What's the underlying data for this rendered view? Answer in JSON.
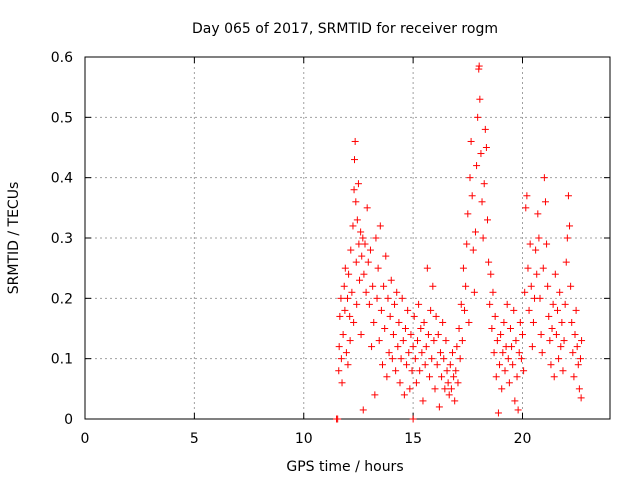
{
  "chart_data": {
    "type": "scatter",
    "title": "Day 065 of 2017, SRMTID for receiver rogm",
    "xlabel": "GPS time / hours",
    "ylabel": "SRMTID / TECUs",
    "xlim": [
      0,
      24
    ],
    "ylim": [
      0,
      0.6
    ],
    "xticks": [
      0,
      5,
      10,
      15,
      20
    ],
    "yticks": [
      0,
      0.1,
      0.2,
      0.3,
      0.4,
      0.5,
      0.6
    ],
    "grid": true,
    "marker": "+",
    "color": "#ff0000",
    "series": [
      {
        "points": [
          [
            11.5,
            0.0
          ],
          [
            11.55,
            0.0
          ],
          [
            15.0,
            0.0
          ],
          [
            11.6,
            0.08
          ],
          [
            11.62,
            0.12
          ],
          [
            11.65,
            0.17
          ],
          [
            11.7,
            0.2
          ],
          [
            11.72,
            0.1
          ],
          [
            11.75,
            0.06
          ],
          [
            11.8,
            0.14
          ],
          [
            11.85,
            0.22
          ],
          [
            11.88,
            0.18
          ],
          [
            11.9,
            0.25
          ],
          [
            11.95,
            0.11
          ],
          [
            12.0,
            0.2
          ],
          [
            12.02,
            0.09
          ],
          [
            12.05,
            0.24
          ],
          [
            12.1,
            0.17
          ],
          [
            12.12,
            0.13
          ],
          [
            12.15,
            0.28
          ],
          [
            12.2,
            0.21
          ],
          [
            12.25,
            0.32
          ],
          [
            12.28,
            0.16
          ],
          [
            12.3,
            0.38
          ],
          [
            12.32,
            0.43
          ],
          [
            12.35,
            0.46
          ],
          [
            12.38,
            0.36
          ],
          [
            12.4,
            0.26
          ],
          [
            12.42,
            0.19
          ],
          [
            12.45,
            0.33
          ],
          [
            12.5,
            0.39
          ],
          [
            12.52,
            0.29
          ],
          [
            12.55,
            0.23
          ],
          [
            12.6,
            0.31
          ],
          [
            12.62,
            0.14
          ],
          [
            12.65,
            0.27
          ],
          [
            12.7,
            0.3
          ],
          [
            12.72,
            0.015
          ],
          [
            12.75,
            0.24
          ],
          [
            12.8,
            0.29
          ],
          [
            12.85,
            0.21
          ],
          [
            12.9,
            0.35
          ],
          [
            12.95,
            0.26
          ],
          [
            13.0,
            0.19
          ],
          [
            13.05,
            0.28
          ],
          [
            13.1,
            0.12
          ],
          [
            13.15,
            0.22
          ],
          [
            13.2,
            0.16
          ],
          [
            13.25,
            0.04
          ],
          [
            13.3,
            0.3
          ],
          [
            13.35,
            0.2
          ],
          [
            13.4,
            0.25
          ],
          [
            13.45,
            0.13
          ],
          [
            13.5,
            0.32
          ],
          [
            13.55,
            0.18
          ],
          [
            13.6,
            0.09
          ],
          [
            13.65,
            0.22
          ],
          [
            13.7,
            0.15
          ],
          [
            13.75,
            0.27
          ],
          [
            13.8,
            0.07
          ],
          [
            13.85,
            0.2
          ],
          [
            13.9,
            0.11
          ],
          [
            13.95,
            0.17
          ],
          [
            14.0,
            0.23
          ],
          [
            14.05,
            0.1
          ],
          [
            14.1,
            0.14
          ],
          [
            14.15,
            0.19
          ],
          [
            14.2,
            0.08
          ],
          [
            14.25,
            0.21
          ],
          [
            14.3,
            0.12
          ],
          [
            14.35,
            0.16
          ],
          [
            14.4,
            0.06
          ],
          [
            14.45,
            0.1
          ],
          [
            14.5,
            0.2
          ],
          [
            14.55,
            0.13
          ],
          [
            14.6,
            0.04
          ],
          [
            14.65,
            0.15
          ],
          [
            14.7,
            0.09
          ],
          [
            14.75,
            0.18
          ],
          [
            14.8,
            0.11
          ],
          [
            14.85,
            0.05
          ],
          [
            14.9,
            0.14
          ],
          [
            14.95,
            0.08
          ],
          [
            15.0,
            0.12
          ],
          [
            15.05,
            0.17
          ],
          [
            15.1,
            0.1
          ],
          [
            15.15,
            0.06
          ],
          [
            15.2,
            0.13
          ],
          [
            15.25,
            0.19
          ],
          [
            15.3,
            0.08
          ],
          [
            15.35,
            0.15
          ],
          [
            15.4,
            0.11
          ],
          [
            15.45,
            0.03
          ],
          [
            15.5,
            0.16
          ],
          [
            15.55,
            0.09
          ],
          [
            15.6,
            0.12
          ],
          [
            15.65,
            0.25
          ],
          [
            15.7,
            0.14
          ],
          [
            15.75,
            0.07
          ],
          [
            15.8,
            0.18
          ],
          [
            15.85,
            0.1
          ],
          [
            15.9,
            0.22
          ],
          [
            15.95,
            0.13
          ],
          [
            16.0,
            0.05
          ],
          [
            16.05,
            0.17
          ],
          [
            16.1,
            0.09
          ],
          [
            16.15,
            0.14
          ],
          [
            16.2,
            0.02
          ],
          [
            16.25,
            0.11
          ],
          [
            16.3,
            0.07
          ],
          [
            16.35,
            0.16
          ],
          [
            16.4,
            0.1
          ],
          [
            16.45,
            0.05
          ],
          [
            16.5,
            0.13
          ],
          [
            16.55,
            0.08
          ],
          [
            16.6,
            0.06
          ],
          [
            16.65,
            0.04
          ],
          [
            16.7,
            0.09
          ],
          [
            16.75,
            0.05
          ],
          [
            16.8,
            0.11
          ],
          [
            16.85,
            0.07
          ],
          [
            16.9,
            0.03
          ],
          [
            16.95,
            0.08
          ],
          [
            17.0,
            0.12
          ],
          [
            17.05,
            0.06
          ],
          [
            17.1,
            0.15
          ],
          [
            17.15,
            0.1
          ],
          [
            17.2,
            0.19
          ],
          [
            17.25,
            0.13
          ],
          [
            17.3,
            0.25
          ],
          [
            17.35,
            0.18
          ],
          [
            17.4,
            0.22
          ],
          [
            17.45,
            0.29
          ],
          [
            17.5,
            0.34
          ],
          [
            17.55,
            0.16
          ],
          [
            17.6,
            0.4
          ],
          [
            17.65,
            0.46
          ],
          [
            17.7,
            0.37
          ],
          [
            17.75,
            0.28
          ],
          [
            17.8,
            0.21
          ],
          [
            17.85,
            0.31
          ],
          [
            17.9,
            0.42
          ],
          [
            17.95,
            0.5
          ],
          [
            18.0,
            0.58
          ],
          [
            18.02,
            0.585
          ],
          [
            18.05,
            0.53
          ],
          [
            18.1,
            0.44
          ],
          [
            18.15,
            0.36
          ],
          [
            18.2,
            0.3
          ],
          [
            18.25,
            0.39
          ],
          [
            18.3,
            0.48
          ],
          [
            18.35,
            0.45
          ],
          [
            18.4,
            0.33
          ],
          [
            18.45,
            0.26
          ],
          [
            18.5,
            0.19
          ],
          [
            18.55,
            0.24
          ],
          [
            18.6,
            0.15
          ],
          [
            18.65,
            0.21
          ],
          [
            18.7,
            0.11
          ],
          [
            18.75,
            0.17
          ],
          [
            18.8,
            0.07
          ],
          [
            18.85,
            0.13
          ],
          [
            18.9,
            0.01
          ],
          [
            18.95,
            0.09
          ],
          [
            19.0,
            0.14
          ],
          [
            19.05,
            0.05
          ],
          [
            19.1,
            0.11
          ],
          [
            19.15,
            0.16
          ],
          [
            19.2,
            0.08
          ],
          [
            19.25,
            0.12
          ],
          [
            19.3,
            0.19
          ],
          [
            19.35,
            0.1
          ],
          [
            19.4,
            0.06
          ],
          [
            19.45,
            0.15
          ],
          [
            19.5,
            0.12
          ],
          [
            19.55,
            0.09
          ],
          [
            19.6,
            0.18
          ],
          [
            19.65,
            0.03
          ],
          [
            19.7,
            0.13
          ],
          [
            19.75,
            0.07
          ],
          [
            19.8,
            0.015
          ],
          [
            19.85,
            0.11
          ],
          [
            19.9,
            0.16
          ],
          [
            19.95,
            0.1
          ],
          [
            20.0,
            0.14
          ],
          [
            20.05,
            0.08
          ],
          [
            20.1,
            0.21
          ],
          [
            20.15,
            0.35
          ],
          [
            20.2,
            0.37
          ],
          [
            20.25,
            0.25
          ],
          [
            20.3,
            0.18
          ],
          [
            20.35,
            0.29
          ],
          [
            20.4,
            0.22
          ],
          [
            20.45,
            0.12
          ],
          [
            20.5,
            0.16
          ],
          [
            20.55,
            0.2
          ],
          [
            20.6,
            0.28
          ],
          [
            20.65,
            0.24
          ],
          [
            20.7,
            0.34
          ],
          [
            20.75,
            0.3
          ],
          [
            20.8,
            0.2
          ],
          [
            20.85,
            0.14
          ],
          [
            20.9,
            0.11
          ],
          [
            20.95,
            0.25
          ],
          [
            21.0,
            0.4
          ],
          [
            21.05,
            0.36
          ],
          [
            21.1,
            0.29
          ],
          [
            21.15,
            0.22
          ],
          [
            21.2,
            0.17
          ],
          [
            21.25,
            0.13
          ],
          [
            21.3,
            0.09
          ],
          [
            21.35,
            0.15
          ],
          [
            21.4,
            0.19
          ],
          [
            21.45,
            0.07
          ],
          [
            21.5,
            0.24
          ],
          [
            21.55,
            0.14
          ],
          [
            21.6,
            0.18
          ],
          [
            21.65,
            0.1
          ],
          [
            21.7,
            0.21
          ],
          [
            21.75,
            0.12
          ],
          [
            21.8,
            0.16
          ],
          [
            21.85,
            0.08
          ],
          [
            21.9,
            0.13
          ],
          [
            21.95,
            0.19
          ],
          [
            22.0,
            0.26
          ],
          [
            22.05,
            0.3
          ],
          [
            22.1,
            0.37
          ],
          [
            22.15,
            0.32
          ],
          [
            22.2,
            0.22
          ],
          [
            22.25,
            0.16
          ],
          [
            22.3,
            0.11
          ],
          [
            22.35,
            0.07
          ],
          [
            22.4,
            0.14
          ],
          [
            22.45,
            0.18
          ],
          [
            22.5,
            0.12
          ],
          [
            22.55,
            0.09
          ],
          [
            22.6,
            0.05
          ],
          [
            22.65,
            0.1
          ],
          [
            22.68,
            0.035
          ],
          [
            22.7,
            0.13
          ]
        ]
      }
    ]
  }
}
